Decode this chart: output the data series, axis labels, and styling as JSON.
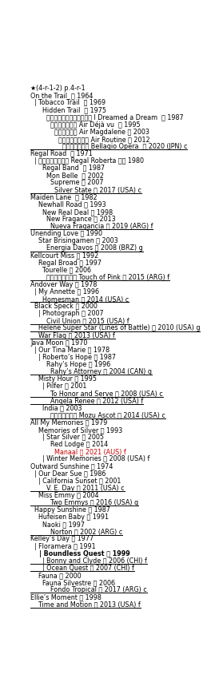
{
  "bg_color": "#ffffff",
  "lines": [
    {
      "text": "★(4-r-1-2) p.4-r-1",
      "underline": false,
      "bold": false,
      "color": "#000000"
    },
    {
      "text": "On the Trail  鹿 1964",
      "underline": false,
      "bold": false,
      "color": "#000000"
    },
    {
      "text": "  | Tobacco Trail  黒 1969",
      "underline": false,
      "bold": false,
      "color": "#000000"
    },
    {
      "text": "      Hidden Trail  鹿 1975",
      "underline": false,
      "bold": false,
      "color": "#000000"
    },
    {
      "text": "        アイドリームドアドリーム I Dreamed a Dream  鹿 1987",
      "underline": false,
      "bold": false,
      "color": "#000000"
    },
    {
      "text": "          エアデジャヴー Air Déjà vu  鹿 1995",
      "underline": false,
      "bold": false,
      "color": "#000000"
    },
    {
      "text": "            エアマグダラ Air Magdalene 栗 2003",
      "underline": false,
      "bold": false,
      "color": "#000000"
    },
    {
      "text": "              エアルーティーン Air Routine 栗 2012",
      "underline": false,
      "bold": false,
      "color": "#000000"
    },
    {
      "text": "                ベラジオオペラ Bellagio Opera  鹿 2020 (JPN) c",
      "underline": true,
      "bold": false,
      "color": "#000000"
    },
    {
      "text": "Regal Road  鹿 1971",
      "underline": false,
      "bold": false,
      "color": "#000000"
    },
    {
      "text": "  | リーガルロバータ Regal Roberta 青鹿 1980",
      "underline": false,
      "bold": false,
      "color": "#000000"
    },
    {
      "text": "      Regal Band  鹿 1987",
      "underline": false,
      "bold": false,
      "color": "#000000"
    },
    {
      "text": "        Mon Belle  鹿 2002",
      "underline": false,
      "bold": false,
      "color": "#000000"
    },
    {
      "text": "          Supreme 黒 2007",
      "underline": false,
      "bold": false,
      "color": "#000000"
    },
    {
      "text": "            Silver State 鹿 2017 (USA) c",
      "underline": true,
      "bold": false,
      "color": "#000000"
    },
    {
      "text": "Maiden Lane  鹿 1982",
      "underline": false,
      "bold": false,
      "color": "#000000"
    },
    {
      "text": "    Newhall Road 鹿 1993",
      "underline": false,
      "bold": false,
      "color": "#000000"
    },
    {
      "text": "      New Real Deal 鹿 1998",
      "underline": false,
      "bold": false,
      "color": "#000000"
    },
    {
      "text": "        New Fragance 鹿 2013",
      "underline": false,
      "bold": false,
      "color": "#000000"
    },
    {
      "text": "          Nueva Fragancia 鹿 2019 (ARG) f",
      "underline": true,
      "bold": false,
      "color": "#000000"
    },
    {
      "text": "Unending Love 黒 1990",
      "underline": false,
      "bold": false,
      "color": "#000000"
    },
    {
      "text": "    Star Brisingamen 芦 2003",
      "underline": false,
      "bold": false,
      "color": "#000000"
    },
    {
      "text": "        Energia Davos 芦 2008 (BRZ) g",
      "underline": true,
      "bold": false,
      "color": "#000000"
    },
    {
      "text": "Kellcourt Miss 栗 1992",
      "underline": false,
      "bold": false,
      "color": "#000000"
    },
    {
      "text": "    Regal Broad 鹿 1997",
      "underline": false,
      "bold": false,
      "color": "#000000"
    },
    {
      "text": "      Tourelle 鹿 2006",
      "underline": false,
      "bold": false,
      "color": "#000000"
    },
    {
      "text": "        タッチオブピンク Touch of Pink 鹿 2015 (ARG) f",
      "underline": true,
      "bold": false,
      "color": "#000000"
    },
    {
      "text": "Andover Way 黒 1978",
      "underline": false,
      "bold": false,
      "color": "#000000"
    },
    {
      "text": "  | My Annette 鹿 1996",
      "underline": false,
      "bold": false,
      "color": "#000000"
    },
    {
      "text": "      Homesman 黒 2014 (USA) c",
      "underline": true,
      "bold": false,
      "color": "#000000"
    },
    {
      "text": "  Black Speck 黒 2000",
      "underline": false,
      "bold": false,
      "color": "#000000"
    },
    {
      "text": "    | Photograph 芦 2007",
      "underline": false,
      "bold": false,
      "color": "#000000"
    },
    {
      "text": "        Civil Union 鹿 2015 (USA) f",
      "underline": true,
      "bold": false,
      "color": "#000000"
    },
    {
      "text": "    Helene Super Star (Lines of Battle) 鹿 2010 (USA) g",
      "underline": true,
      "bold": false,
      "color": "#000000"
    },
    {
      "text": "    War Flag 鹿 2013 (USA) f",
      "underline": true,
      "bold": false,
      "color": "#000000"
    },
    {
      "text": "Java Moon 鹿 1970",
      "underline": false,
      "bold": false,
      "color": "#000000"
    },
    {
      "text": "  | Our Tina Marie 鹿 1978",
      "underline": false,
      "bold": false,
      "color": "#000000"
    },
    {
      "text": "    | Roberto’s Hope 鹿 1987",
      "underline": false,
      "bold": false,
      "color": "#000000"
    },
    {
      "text": "        Rahy’s Hope 鹿 1996",
      "underline": false,
      "bold": false,
      "color": "#000000"
    },
    {
      "text": "          Rahy’s Attorney 鹿 2004 (CAN) g",
      "underline": true,
      "bold": false,
      "color": "#000000"
    },
    {
      "text": "    Misty Hour 鹿 1995",
      "underline": false,
      "bold": false,
      "color": "#000000"
    },
    {
      "text": "      | Pilfer 栗 2001",
      "underline": false,
      "bold": false,
      "color": "#000000"
    },
    {
      "text": "          To Honor and Serve 鹿 2008 (USA) c",
      "underline": true,
      "bold": false,
      "color": "#000000"
    },
    {
      "text": "          Angela Renee 鹿 2012 (USA) f",
      "underline": true,
      "bold": false,
      "color": "#000000"
    },
    {
      "text": "      India 栗 2003",
      "underline": false,
      "bold": false,
      "color": "#000000"
    },
    {
      "text": "          モズアスコット Mozu Ascot 栗 2014 (USA) c",
      "underline": true,
      "bold": false,
      "color": "#000000"
    },
    {
      "text": "All My Memories 鹿 1979",
      "underline": false,
      "bold": false,
      "color": "#000000"
    },
    {
      "text": "    Memories of Silver 鹿 1993",
      "underline": false,
      "bold": false,
      "color": "#000000"
    },
    {
      "text": "      | Star Silver 鹿 2005",
      "underline": false,
      "bold": false,
      "color": "#000000"
    },
    {
      "text": "          Red Lodge 栗 2014",
      "underline": false,
      "bold": false,
      "color": "#000000"
    },
    {
      "text": "            Manaal 黒 2021 (AUS) f",
      "underline": false,
      "bold": false,
      "color": "#cc0000"
    },
    {
      "text": "      | Winter Memories 芦 2008 (USA) f",
      "underline": false,
      "bold": false,
      "color": "#000000"
    },
    {
      "text": "Outward Sunshine 栗 1974",
      "underline": false,
      "bold": false,
      "color": "#000000"
    },
    {
      "text": "  | Our Dear Sue 栗 1986",
      "underline": false,
      "bold": false,
      "color": "#000000"
    },
    {
      "text": "    | California Sunset 栗 2001",
      "underline": false,
      "bold": false,
      "color": "#000000"
    },
    {
      "text": "        V. E. Day 栗 2011 (USA) c",
      "underline": true,
      "bold": false,
      "color": "#000000"
    },
    {
      "text": "    Miss Emmy 栗 2004",
      "underline": false,
      "bold": false,
      "color": "#000000"
    },
    {
      "text": "          Two Emmys 栗 2016 (USA) g",
      "underline": true,
      "bold": false,
      "color": "#000000"
    },
    {
      "text": "  Happy Sunshine 栗 1987",
      "underline": false,
      "bold": false,
      "color": "#000000"
    },
    {
      "text": "    Hufeisen Baby 鹿 1991",
      "underline": false,
      "bold": false,
      "color": "#000000"
    },
    {
      "text": "      Naoki 栗 1997",
      "underline": false,
      "bold": false,
      "color": "#000000"
    },
    {
      "text": "          Norton 栗 2002 (ARG) c",
      "underline": true,
      "bold": false,
      "color": "#000000"
    },
    {
      "text": "Kelley’s Day 鹿 1977",
      "underline": false,
      "bold": false,
      "color": "#000000"
    },
    {
      "text": "  | Floramera 黒 1991",
      "underline": false,
      "bold": false,
      "color": "#000000"
    },
    {
      "text": "    | Boundless Quest 黒 1999",
      "underline": false,
      "bold": true,
      "color": "#000000"
    },
    {
      "text": "      | Bonny and Clyde 鹿 2006 (CHI) f",
      "underline": true,
      "bold": false,
      "color": "#000000"
    },
    {
      "text": "      | Ocean Quest 黒 2007 (CHI) f",
      "underline": true,
      "bold": false,
      "color": "#000000"
    },
    {
      "text": "    Fauna 栗 2000",
      "underline": false,
      "bold": false,
      "color": "#000000"
    },
    {
      "text": "      Fauna Silvestre 黒 2006",
      "underline": false,
      "bold": false,
      "color": "#000000"
    },
    {
      "text": "          Fondo Tropical 芦 2017 (ARG) c",
      "underline": true,
      "bold": false,
      "color": "#000000"
    },
    {
      "text": "Ellie’s Moment 鹿 1998",
      "underline": false,
      "bold": false,
      "color": "#000000"
    },
    {
      "text": "    Time and Motion 鹿 2013 (USA) f",
      "underline": true,
      "bold": false,
      "color": "#000000"
    }
  ]
}
